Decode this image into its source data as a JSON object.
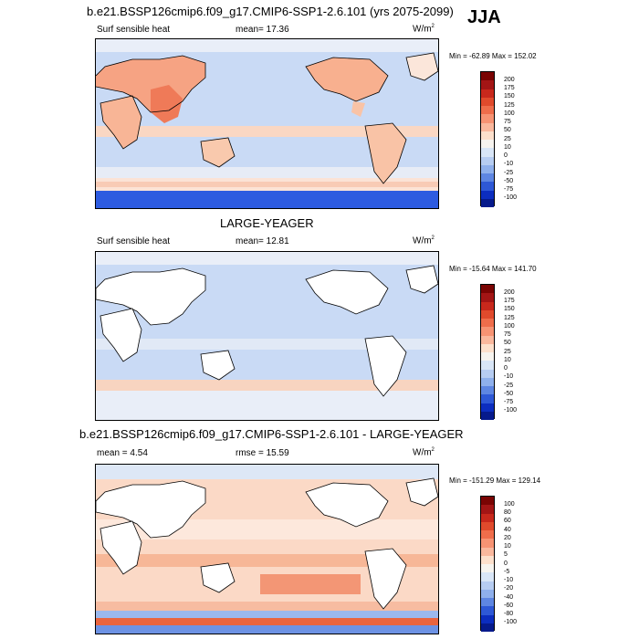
{
  "season": "JJA",
  "panels": [
    {
      "title": "b.e21.BSSP126cmip6.f09_g17.CMIP6-SSP1-2.6.101 (yrs 2075-2099)",
      "left_label": "Surf sensible heat",
      "stat": "mean=  17.36",
      "units_base": "W/m",
      "units_sup": "2",
      "minmax": "Min = -62.89 Max = 152.02",
      "colorbar_levels": [
        "200",
        "175",
        "150",
        "125",
        "100",
        "75",
        "50",
        "25",
        "10",
        "0",
        "-10",
        "-25",
        "-50",
        "-75",
        "-100"
      ]
    },
    {
      "title": "LARGE-YEAGER",
      "left_label": "Surf sensible heat",
      "stat": "mean=  12.81",
      "units_base": "W/m",
      "units_sup": "2",
      "minmax": "Min = -15.64 Max = 141.70",
      "colorbar_levels": [
        "200",
        "175",
        "150",
        "125",
        "100",
        "75",
        "50",
        "25",
        "10",
        "0",
        "-10",
        "-25",
        "-50",
        "-75",
        "-100"
      ]
    },
    {
      "title": "b.e21.BSSP126cmip6.f09_g17.CMIP6-SSP1-2.6.101 - LARGE-YEAGER",
      "left_label": "mean =   4.54",
      "stat": "rmse =  15.59",
      "units_base": "W/m",
      "units_sup": "2",
      "minmax": "Min = -151.29 Max = 129.14",
      "colorbar_levels": [
        "100",
        "80",
        "60",
        "40",
        "20",
        "10",
        "5",
        "0",
        "-5",
        "-10",
        "-20",
        "-40",
        "-60",
        "-80",
        "-100"
      ]
    }
  ],
  "colors": {
    "scale_top_to_bottom": [
      "#7a0403",
      "#a31515",
      "#c8281c",
      "#e04a2c",
      "#ef6d4b",
      "#f79373",
      "#fab89d",
      "#fde0cc",
      "#f7f4ef",
      "#d9e6f7",
      "#b7cdf2",
      "#8fb0ec",
      "#5e86e2",
      "#2e58d6",
      "#0c2dbf",
      "#061a8c"
    ],
    "land": "#ffffff",
    "coast": "#000000"
  }
}
